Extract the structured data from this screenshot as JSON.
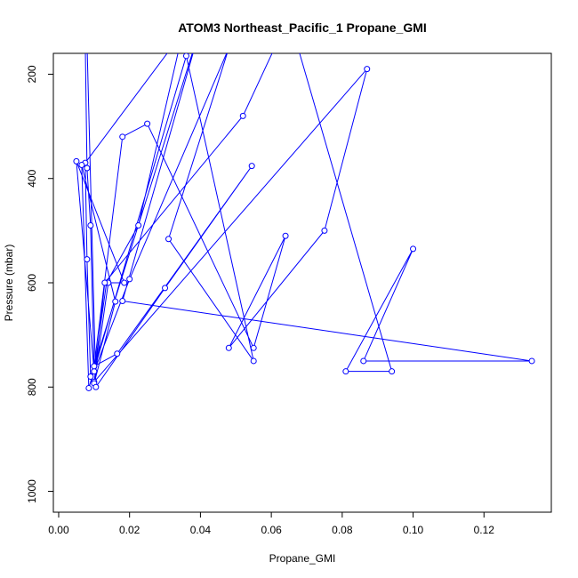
{
  "chart_data": {
    "type": "line",
    "title": "ATOM3 Northeast_Pacific_1 Propane_GMI",
    "xlabel": "Propane_GMI",
    "ylabel": "Pressure (mbar)",
    "xlim": [
      -0.0015,
      0.139
    ],
    "ylim": [
      1040,
      160
    ],
    "y_reversed": true,
    "x_ticks": [
      0.0,
      0.02,
      0.04,
      0.06,
      0.08,
      0.1,
      0.12
    ],
    "x_tick_labels": [
      "0.00",
      "0.02",
      "0.04",
      "0.06",
      "0.08",
      "0.10",
      "0.12"
    ],
    "y_ticks": [
      200,
      400,
      600,
      800,
      1000
    ],
    "y_tick_labels": [
      "200",
      "400",
      "600",
      "800",
      "1000"
    ],
    "grid": false,
    "marker": "open-circle",
    "series_color": "#0000ff",
    "series": [
      {
        "x": [
          0.0075,
          0.008,
          0.009,
          0.01,
          0.0135,
          0.0225,
          0.035,
          0.0075,
          0.008,
          0.009,
          0.01,
          0.01,
          0.018,
          0.025,
          0.055,
          0.064,
          0.048,
          0.075,
          0.087,
          0.01,
          0.014,
          0.0185,
          0.005,
          0.01,
          0.02,
          0.048,
          0.031,
          0.055,
          0.036,
          0.0085,
          0.0065,
          0.016,
          0.01,
          0.013,
          0.052,
          0.065,
          0.094,
          0.081,
          0.1,
          0.086,
          0.1335,
          0.018,
          0.04,
          0.01,
          0.0165,
          0.0545,
          0.03,
          0.0105,
          0.008
        ],
        "y": [
          140,
          380,
          490,
          770,
          600,
          490,
          120,
          370,
          555,
          780,
          760,
          760,
          320,
          295,
          725,
          510,
          725,
          500,
          190,
          790,
          600,
          600,
          367,
          770,
          593,
          150,
          516,
          750,
          165,
          802,
          374,
          636,
          793,
          600,
          280,
          90,
          770,
          770,
          535,
          750,
          750,
          635,
          110,
          760,
          736,
          376,
          610,
          800,
          140
        ]
      }
    ]
  }
}
